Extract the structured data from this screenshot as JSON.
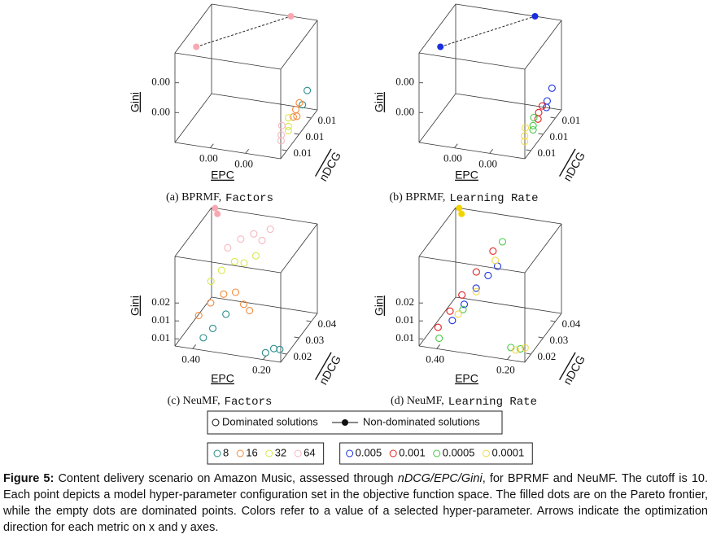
{
  "chart_data": [
    {
      "type": "scatter3d",
      "caption": "(a) BPRMF,",
      "param": "Factors",
      "xlabel": "EPC",
      "ylabel": "nDCG",
      "zlabel": "Gini",
      "xlim": [
        0.006,
        0
      ],
      "xticks": [
        {
          "value": 0.004,
          "label": "0.00"
        },
        {
          "value": 0.002,
          "label": "0.00"
        }
      ],
      "ylim": [
        0.007,
        0.013
      ],
      "yticks": [
        {
          "value": 0.008,
          "label": "0.01"
        },
        {
          "value": 0.01,
          "label": "0.01"
        },
        {
          "value": 0.012,
          "label": "0.01"
        }
      ],
      "zlim": [
        0,
        0.006
      ],
      "zticks": [
        {
          "value": 0.002,
          "label": "0.00"
        },
        {
          "value": 0.004,
          "label": "0.00"
        }
      ],
      "series": [
        {
          "color": "#2b8c8c",
          "x": [
            0.0004,
            0.0005
          ],
          "y": [
            0.0125,
            0.012
          ],
          "z": [
            0.0015,
            0.0008
          ]
        },
        {
          "color": "#f28a3c",
          "x": [
            0.0005,
            0.0006,
            0.0004,
            0.0005
          ],
          "y": [
            0.0115,
            0.0112,
            0.0108,
            0.0105
          ],
          "z": [
            0.0012,
            0.0009,
            0.0007,
            0.0008
          ]
        },
        {
          "color": "#d9e84a",
          "x": [
            0.0006,
            0.0005,
            0.0004
          ],
          "y": [
            0.01,
            0.0097,
            0.0094
          ],
          "z": [
            0.001,
            0.0006,
            0.0005
          ]
        },
        {
          "color": "#f7b7bf",
          "x": [
            0.0007,
            0.0006,
            0.0005
          ],
          "y": [
            0.0092,
            0.0088,
            0.0085
          ],
          "z": [
            0.0009,
            0.0005,
            0.0003
          ]
        }
      ],
      "frontier": {
        "color": "#f7a9b2",
        "x": [
          0.006,
          0.0015
        ],
        "y": [
          0.0105,
          0.013
        ],
        "z": [
          0.0045,
          0.006
        ]
      }
    },
    {
      "type": "scatter3d",
      "caption": "(b) BPRMF,",
      "param": "Learning Rate",
      "xlabel": "EPC",
      "ylabel": "nDCG",
      "zlabel": "Gini",
      "xlim": [
        0.006,
        0
      ],
      "xticks": [
        {
          "value": 0.004,
          "label": "0.00"
        },
        {
          "value": 0.002,
          "label": "0.00"
        }
      ],
      "ylim": [
        0.007,
        0.013
      ],
      "yticks": [
        {
          "value": 0.008,
          "label": "0.01"
        },
        {
          "value": 0.01,
          "label": "0.01"
        },
        {
          "value": 0.012,
          "label": "0.01"
        }
      ],
      "zlim": [
        0,
        0.006
      ],
      "zticks": [
        {
          "value": 0.002,
          "label": "0.00"
        },
        {
          "value": 0.004,
          "label": "0.00"
        }
      ],
      "series": [
        {
          "color": "#1a2ee0",
          "x": [
            0.0004,
            0.0005,
            0.0004
          ],
          "y": [
            0.0126,
            0.0121,
            0.0117
          ],
          "z": [
            0.0016,
            0.001,
            0.0008
          ]
        },
        {
          "color": "#e32222",
          "x": [
            0.0005,
            0.0006,
            0.0005
          ],
          "y": [
            0.0113,
            0.011,
            0.0106
          ],
          "z": [
            0.0011,
            0.0008,
            0.0006
          ]
        },
        {
          "color": "#46c846",
          "x": [
            0.0006,
            0.0005,
            0.0004
          ],
          "y": [
            0.0102,
            0.0098,
            0.0095
          ],
          "z": [
            0.0009,
            0.0006,
            0.0005
          ]
        },
        {
          "color": "#f2d84a",
          "x": [
            0.0007,
            0.0006,
            0.0005
          ],
          "y": [
            0.0091,
            0.0087,
            0.0084
          ],
          "z": [
            0.0008,
            0.0005,
            0.0003
          ]
        }
      ],
      "frontier": {
        "color": "#1a2ee0",
        "x": [
          0.006,
          0.0015
        ],
        "y": [
          0.0105,
          0.013
        ],
        "z": [
          0.0045,
          0.006
        ]
      }
    },
    {
      "type": "scatter3d",
      "caption": "(c) NeuMF,",
      "param": "Factors",
      "xlabel": "EPC",
      "ylabel": "nDCG",
      "zlabel": "Gini",
      "xlim": [
        0.45,
        0.15
      ],
      "xticks": [
        {
          "value": 0.4,
          "label": "0.40"
        },
        {
          "value": 0.2,
          "label": "0.20"
        }
      ],
      "ylim": [
        0.015,
        0.045
      ],
      "yticks": [
        0.02,
        0.03,
        0.04
      ],
      "zlim": [
        0.005,
        0.03
      ],
      "zticks": [
        {
          "value": 0.007,
          "label": "0.01"
        },
        {
          "value": 0.012,
          "label": "0.01"
        },
        {
          "value": 0.017,
          "label": "0.02"
        }
      ],
      "series": [
        {
          "name": "8",
          "color": "#2b8c8c",
          "x": [
            0.38,
            0.36,
            0.34,
            0.2,
            0.18,
            0.17
          ],
          "y": [
            0.018,
            0.02,
            0.025,
            0.017,
            0.018,
            0.02
          ],
          "z": [
            0.007,
            0.009,
            0.011,
            0.006,
            0.007,
            0.006
          ]
        },
        {
          "name": "16",
          "color": "#f28a3c",
          "x": [
            0.4,
            0.38,
            0.35,
            0.33,
            0.3,
            0.28
          ],
          "y": [
            0.02,
            0.024,
            0.026,
            0.03,
            0.028,
            0.027
          ],
          "z": [
            0.012,
            0.014,
            0.016,
            0.015,
            0.013,
            0.012
          ]
        },
        {
          "name": "32",
          "color": "#d9e84a",
          "x": [
            0.4,
            0.38,
            0.35,
            0.33,
            0.3
          ],
          "y": [
            0.03,
            0.033,
            0.035,
            0.037,
            0.038
          ],
          "z": [
            0.017,
            0.019,
            0.021,
            0.02,
            0.022
          ]
        },
        {
          "name": "64",
          "color": "#f7b7bf",
          "x": [
            0.38,
            0.35,
            0.32,
            0.3,
            0.28
          ],
          "y": [
            0.038,
            0.04,
            0.042,
            0.043,
            0.044
          ],
          "z": [
            0.023,
            0.025,
            0.026,
            0.024,
            0.027
          ]
        }
      ],
      "frontier": {
        "color": "#f7a9b2",
        "x": [
          0.44,
          0.43
        ],
        "y": [
          0.045,
          0.044
        ],
        "z": [
          0.03,
          0.029
        ]
      }
    },
    {
      "type": "scatter3d",
      "caption": "(d) NeuMF,",
      "param": "Learning Rate",
      "xlabel": "EPC",
      "ylabel": "nDCG",
      "zlabel": "Gini",
      "xlim": [
        0.45,
        0.15
      ],
      "xticks": [
        {
          "value": 0.4,
          "label": "0.40"
        },
        {
          "value": 0.2,
          "label": "0.20"
        }
      ],
      "ylim": [
        0.015,
        0.045
      ],
      "yticks": [
        0.02,
        0.03,
        0.04
      ],
      "zlim": [
        0.005,
        0.03
      ],
      "zticks": [
        {
          "value": 0.007,
          "label": "0.01"
        },
        {
          "value": 0.012,
          "label": "0.01"
        },
        {
          "value": 0.017,
          "label": "0.02"
        }
      ],
      "series": [
        {
          "name": "0.005",
          "color": "#1a2ee0",
          "x": [
            0.38,
            0.36,
            0.34,
            0.32,
            0.3
          ],
          "y": [
            0.022,
            0.026,
            0.03,
            0.034,
            0.036
          ],
          "z": [
            0.01,
            0.013,
            0.016,
            0.018,
            0.02
          ]
        },
        {
          "name": "0.001",
          "color": "#e32222",
          "x": [
            0.41,
            0.39,
            0.37,
            0.35,
            0.32
          ],
          "y": [
            0.019,
            0.023,
            0.027,
            0.033,
            0.038
          ],
          "z": [
            0.009,
            0.012,
            0.015,
            0.019,
            0.023
          ]
        },
        {
          "name": "0.0005",
          "color": "#46c846",
          "x": [
            0.4,
            0.36,
            0.3,
            0.2,
            0.18
          ],
          "y": [
            0.017,
            0.025,
            0.04,
            0.018,
            0.02
          ],
          "z": [
            0.007,
            0.012,
            0.025,
            0.007,
            0.006
          ]
        },
        {
          "name": "0.0001",
          "color": "#f2d84a",
          "x": [
            0.37,
            0.34,
            0.31,
            0.19,
            0.17
          ],
          "y": [
            0.024,
            0.03,
            0.037,
            0.019,
            0.021
          ],
          "z": [
            0.011,
            0.015,
            0.021,
            0.006,
            0.006
          ]
        }
      ],
      "frontier": {
        "color": "#f2d200",
        "x": [
          0.44,
          0.43
        ],
        "y": [
          0.045,
          0.044
        ],
        "z": [
          0.03,
          0.029
        ]
      }
    }
  ],
  "legend": {
    "dominated": "Dominated solutions",
    "non_dominated": "Non-dominated solutions"
  },
  "caption": {
    "label": "Figure 5:",
    "lead": "Content delivery scenario on Amazon Music, assessed through ",
    "metrics": "nDCG/EPC/Gini",
    "body": ", for BPRMF and NeuMF. The cutoff is 10. Each point depicts a model hyper-parameter configuration set in the objective function space. The filled dots are on the Pareto frontier, while the empty dots are dominated points. Colors refer to a value of a selected hyper-parameter. Arrows indicate the optimization direction for each metric on x and y axes."
  }
}
